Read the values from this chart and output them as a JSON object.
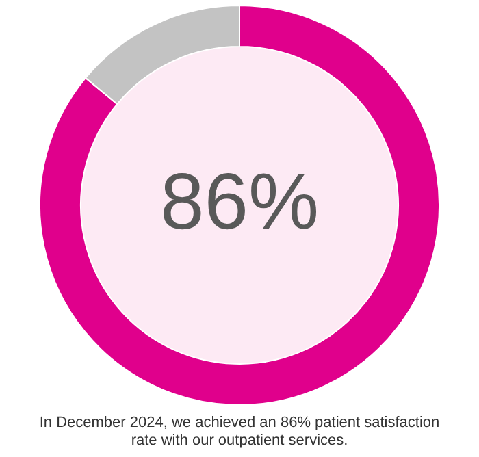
{
  "chart_data": {
    "type": "donut",
    "categories": [
      null,
      null
    ],
    "values": [
      86,
      14
    ],
    "colors": [
      "#e0008c",
      "#c3c3c3"
    ],
    "value_labels": [
      "86%",
      null
    ],
    "annotations": [
      "In December 2024, we achieved an 86% patient satisfaction rate with our outpatient services."
    ]
  }
}
